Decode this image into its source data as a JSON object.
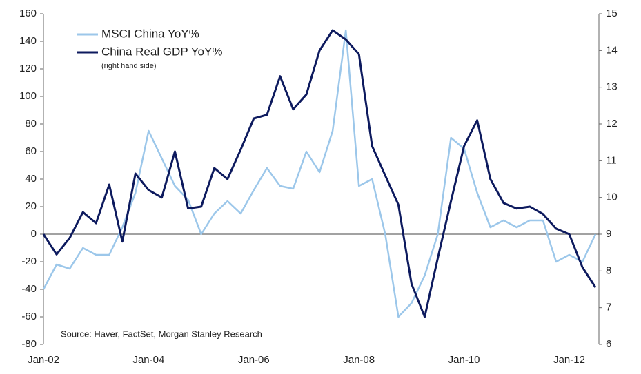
{
  "chart_data": {
    "type": "line",
    "categories": [
      "Jan-02",
      null,
      null,
      null,
      null,
      null,
      null,
      null,
      "Jan-04",
      null,
      null,
      null,
      null,
      null,
      null,
      null,
      "Jan-06",
      null,
      null,
      null,
      null,
      null,
      null,
      null,
      "Jan-08",
      null,
      null,
      null,
      null,
      null,
      null,
      null,
      "Jan-10",
      null,
      null,
      null,
      null,
      null,
      null,
      null,
      "Jan-12",
      null,
      null
    ],
    "series": [
      {
        "name": "MSCI China YoY%",
        "color": "#9cc7ea",
        "axis": "y",
        "values": [
          -40,
          -22,
          -25,
          -10,
          -15,
          -15,
          5,
          30,
          75,
          55,
          35,
          25,
          0,
          15,
          24,
          15,
          32,
          48,
          35,
          33,
          60,
          45,
          75,
          148,
          35,
          40,
          0,
          -60,
          -50,
          -30,
          0,
          70,
          62,
          30,
          5,
          10,
          5,
          10,
          10,
          -20,
          -15,
          -20,
          0
        ]
      },
      {
        "name": "China Real GDP YoY%",
        "color": "#0d1a5e",
        "axis": "y2",
        "values": [
          9.0,
          8.45,
          8.9,
          9.6,
          9.3,
          10.35,
          8.8,
          10.65,
          10.2,
          10.0,
          11.25,
          9.7,
          9.75,
          10.8,
          10.5,
          11.3,
          12.15,
          12.25,
          13.3,
          12.4,
          12.8,
          14.0,
          14.55,
          14.3,
          13.9,
          11.4,
          10.6,
          9.8,
          7.65,
          6.75,
          8.35,
          9.9,
          11.4,
          12.1,
          10.5,
          9.85,
          9.7,
          9.75,
          9.55,
          9.15,
          9.0,
          8.1,
          7.55
        ]
      }
    ],
    "legend_note": "(right hand side)",
    "source": "Source: Haver, FactSet, Morgan Stanley Research",
    "ylim": [
      -80,
      160
    ],
    "yticks": [
      -80,
      -60,
      -40,
      -20,
      0,
      20,
      40,
      60,
      80,
      100,
      120,
      140,
      160
    ],
    "y2lim": [
      6,
      15
    ],
    "y2ticks": [
      6,
      7,
      8,
      9,
      10,
      11,
      12,
      13,
      14,
      15
    ],
    "legend": "upper left"
  }
}
